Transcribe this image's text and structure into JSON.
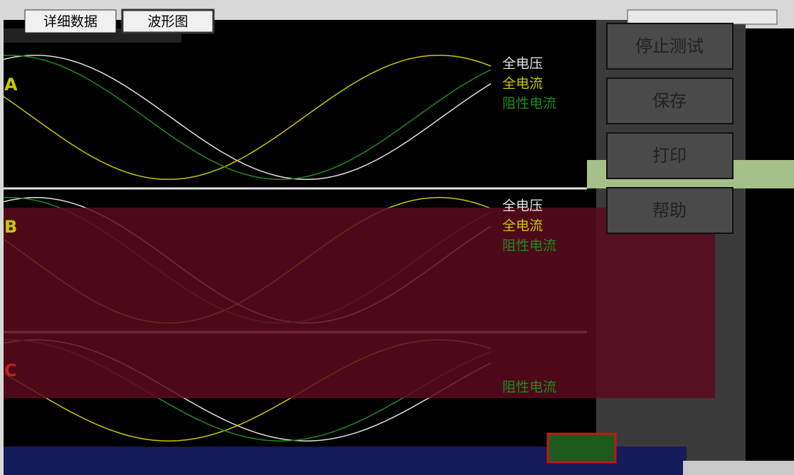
{
  "tabs": [
    "详细数据",
    "波形图"
  ],
  "buttons": [
    "停止测试",
    "保存",
    "打印",
    "帮助"
  ],
  "panels": [
    {
      "label": "A",
      "legend": [
        "全电压",
        "全电流",
        "阻性电流"
      ]
    },
    {
      "label": "B",
      "legend": [
        "全电压",
        "全电流",
        "阻性电流"
      ]
    },
    {
      "label": "C",
      "legend": [
        "阻性电流"
      ]
    }
  ]
}
